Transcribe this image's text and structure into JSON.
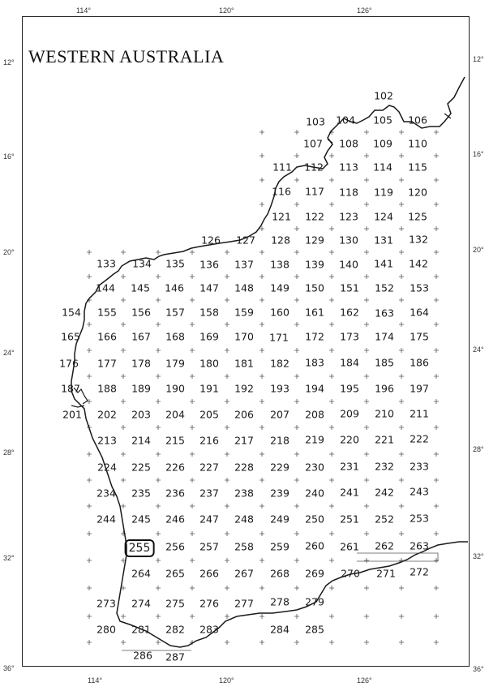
{
  "map": {
    "title": "WESTERN AUSTRALIA",
    "longitude_labels": [
      "114°",
      "120°",
      "126°"
    ],
    "latitude_labels": [
      "12°",
      "16°",
      "20°",
      "24°",
      "28°",
      "32°",
      "36°"
    ],
    "highlighted_cell": "255",
    "cells": [
      {
        "id": "102",
        "highlight": false
      },
      {
        "id": "103",
        "highlight": false
      },
      {
        "id": "104",
        "highlight": false
      },
      {
        "id": "105",
        "highlight": false
      },
      {
        "id": "106",
        "highlight": false
      },
      {
        "id": "107",
        "highlight": false
      },
      {
        "id": "108",
        "highlight": false
      },
      {
        "id": "109",
        "highlight": false
      },
      {
        "id": "110",
        "highlight": false
      },
      {
        "id": "111",
        "highlight": false
      },
      {
        "id": "112",
        "highlight": false
      },
      {
        "id": "113",
        "highlight": false
      },
      {
        "id": "114",
        "highlight": false
      },
      {
        "id": "115",
        "highlight": false
      },
      {
        "id": "116",
        "highlight": false
      },
      {
        "id": "117",
        "highlight": false
      },
      {
        "id": "118",
        "highlight": false
      },
      {
        "id": "119",
        "highlight": false
      },
      {
        "id": "120",
        "highlight": false
      },
      {
        "id": "121",
        "highlight": false
      },
      {
        "id": "122",
        "highlight": false
      },
      {
        "id": "123",
        "highlight": false
      },
      {
        "id": "124",
        "highlight": false
      },
      {
        "id": "125",
        "highlight": false
      },
      {
        "id": "126",
        "highlight": false
      },
      {
        "id": "127",
        "highlight": false
      },
      {
        "id": "128",
        "highlight": false
      },
      {
        "id": "129",
        "highlight": false
      },
      {
        "id": "130",
        "highlight": false
      },
      {
        "id": "131",
        "highlight": false
      },
      {
        "id": "132",
        "highlight": false
      },
      {
        "id": "133",
        "highlight": false
      },
      {
        "id": "134",
        "highlight": false
      },
      {
        "id": "135",
        "highlight": false
      },
      {
        "id": "136",
        "highlight": false
      },
      {
        "id": "137",
        "highlight": false
      },
      {
        "id": "138",
        "highlight": false
      },
      {
        "id": "139",
        "highlight": false
      },
      {
        "id": "140",
        "highlight": false
      },
      {
        "id": "141",
        "highlight": false
      },
      {
        "id": "142",
        "highlight": false
      },
      {
        "id": "144",
        "highlight": false
      },
      {
        "id": "145",
        "highlight": false
      },
      {
        "id": "146",
        "highlight": false
      },
      {
        "id": "147",
        "highlight": false
      },
      {
        "id": "148",
        "highlight": false
      },
      {
        "id": "149",
        "highlight": false
      },
      {
        "id": "150",
        "highlight": false
      },
      {
        "id": "151",
        "highlight": false
      },
      {
        "id": "152",
        "highlight": false
      },
      {
        "id": "153",
        "highlight": false
      },
      {
        "id": "154",
        "highlight": false
      },
      {
        "id": "155",
        "highlight": false
      },
      {
        "id": "156",
        "highlight": false
      },
      {
        "id": "157",
        "highlight": false
      },
      {
        "id": "158",
        "highlight": false
      },
      {
        "id": "159",
        "highlight": false
      },
      {
        "id": "160",
        "highlight": false
      },
      {
        "id": "161",
        "highlight": false
      },
      {
        "id": "162",
        "highlight": false
      },
      {
        "id": "163",
        "highlight": false
      },
      {
        "id": "164",
        "highlight": false
      },
      {
        "id": "165",
        "highlight": false
      },
      {
        "id": "166",
        "highlight": false
      },
      {
        "id": "167",
        "highlight": false
      },
      {
        "id": "168",
        "highlight": false
      },
      {
        "id": "169",
        "highlight": false
      },
      {
        "id": "170",
        "highlight": false
      },
      {
        "id": "171",
        "highlight": false
      },
      {
        "id": "172",
        "highlight": false
      },
      {
        "id": "173",
        "highlight": false
      },
      {
        "id": "174",
        "highlight": false
      },
      {
        "id": "175",
        "highlight": false
      },
      {
        "id": "176",
        "highlight": false
      },
      {
        "id": "177",
        "highlight": false
      },
      {
        "id": "178",
        "highlight": false
      },
      {
        "id": "179",
        "highlight": false
      },
      {
        "id": "180",
        "highlight": false
      },
      {
        "id": "181",
        "highlight": false
      },
      {
        "id": "182",
        "highlight": false
      },
      {
        "id": "183",
        "highlight": false
      },
      {
        "id": "184",
        "highlight": false
      },
      {
        "id": "185",
        "highlight": false
      },
      {
        "id": "186",
        "highlight": false
      },
      {
        "id": "187",
        "highlight": false
      },
      {
        "id": "188",
        "highlight": false
      },
      {
        "id": "189",
        "highlight": false
      },
      {
        "id": "190",
        "highlight": false
      },
      {
        "id": "191",
        "highlight": false
      },
      {
        "id": "192",
        "highlight": false
      },
      {
        "id": "193",
        "highlight": false
      },
      {
        "id": "194",
        "highlight": false
      },
      {
        "id": "195",
        "highlight": false
      },
      {
        "id": "196",
        "highlight": false
      },
      {
        "id": "197",
        "highlight": false
      },
      {
        "id": "201",
        "highlight": false
      },
      {
        "id": "202",
        "highlight": false
      },
      {
        "id": "203",
        "highlight": false
      },
      {
        "id": "204",
        "highlight": false
      },
      {
        "id": "205",
        "highlight": false
      },
      {
        "id": "206",
        "highlight": false
      },
      {
        "id": "207",
        "highlight": false
      },
      {
        "id": "208",
        "highlight": false
      },
      {
        "id": "209",
        "highlight": false
      },
      {
        "id": "210",
        "highlight": false
      },
      {
        "id": "211",
        "highlight": false
      },
      {
        "id": "213",
        "highlight": false
      },
      {
        "id": "214",
        "highlight": false
      },
      {
        "id": "215",
        "highlight": false
      },
      {
        "id": "216",
        "highlight": false
      },
      {
        "id": "217",
        "highlight": false
      },
      {
        "id": "218",
        "highlight": false
      },
      {
        "id": "219",
        "highlight": false
      },
      {
        "id": "220",
        "highlight": false
      },
      {
        "id": "221",
        "highlight": false
      },
      {
        "id": "222",
        "highlight": false
      },
      {
        "id": "224",
        "highlight": false
      },
      {
        "id": "225",
        "highlight": false
      },
      {
        "id": "226",
        "highlight": false
      },
      {
        "id": "227",
        "highlight": false
      },
      {
        "id": "228",
        "highlight": false
      },
      {
        "id": "229",
        "highlight": false
      },
      {
        "id": "230",
        "highlight": false
      },
      {
        "id": "231",
        "highlight": false
      },
      {
        "id": "232",
        "highlight": false
      },
      {
        "id": "233",
        "highlight": false
      },
      {
        "id": "234",
        "highlight": false
      },
      {
        "id": "235",
        "highlight": false
      },
      {
        "id": "236",
        "highlight": false
      },
      {
        "id": "237",
        "highlight": false
      },
      {
        "id": "238",
        "highlight": false
      },
      {
        "id": "239",
        "highlight": false
      },
      {
        "id": "240",
        "highlight": false
      },
      {
        "id": "241",
        "highlight": false
      },
      {
        "id": "242",
        "highlight": false
      },
      {
        "id": "243",
        "highlight": false
      },
      {
        "id": "244",
        "highlight": false
      },
      {
        "id": "245",
        "highlight": false
      },
      {
        "id": "246",
        "highlight": false
      },
      {
        "id": "247",
        "highlight": false
      },
      {
        "id": "248",
        "highlight": false
      },
      {
        "id": "249",
        "highlight": false
      },
      {
        "id": "250",
        "highlight": false
      },
      {
        "id": "251",
        "highlight": false
      },
      {
        "id": "252",
        "highlight": false
      },
      {
        "id": "253",
        "highlight": false
      },
      {
        "id": "255",
        "highlight": true
      },
      {
        "id": "256",
        "highlight": false
      },
      {
        "id": "257",
        "highlight": false
      },
      {
        "id": "258",
        "highlight": false
      },
      {
        "id": "259",
        "highlight": false
      },
      {
        "id": "260",
        "highlight": false
      },
      {
        "id": "261",
        "highlight": false
      },
      {
        "id": "262",
        "highlight": false
      },
      {
        "id": "263",
        "highlight": false
      },
      {
        "id": "264",
        "highlight": false
      },
      {
        "id": "265",
        "highlight": false
      },
      {
        "id": "266",
        "highlight": false
      },
      {
        "id": "267",
        "highlight": false
      },
      {
        "id": "268",
        "highlight": false
      },
      {
        "id": "269",
        "highlight": false
      },
      {
        "id": "270",
        "highlight": false
      },
      {
        "id": "271",
        "highlight": false
      },
      {
        "id": "272",
        "highlight": false
      },
      {
        "id": "273",
        "highlight": false
      },
      {
        "id": "274",
        "highlight": false
      },
      {
        "id": "275",
        "highlight": false
      },
      {
        "id": "276",
        "highlight": false
      },
      {
        "id": "277",
        "highlight": false
      },
      {
        "id": "278",
        "highlight": false
      },
      {
        "id": "279",
        "highlight": false
      },
      {
        "id": "280",
        "highlight": false
      },
      {
        "id": "281",
        "highlight": false
      },
      {
        "id": "282",
        "highlight": false
      },
      {
        "id": "283",
        "highlight": false
      },
      {
        "id": "284",
        "highlight": false
      },
      {
        "id": "285",
        "highlight": false
      },
      {
        "id": "286",
        "highlight": false
      },
      {
        "id": "287",
        "highlight": false
      }
    ],
    "colors": {
      "ink": "#1a1a1a",
      "paper": "#ffffff",
      "grid": "#555555"
    }
  }
}
